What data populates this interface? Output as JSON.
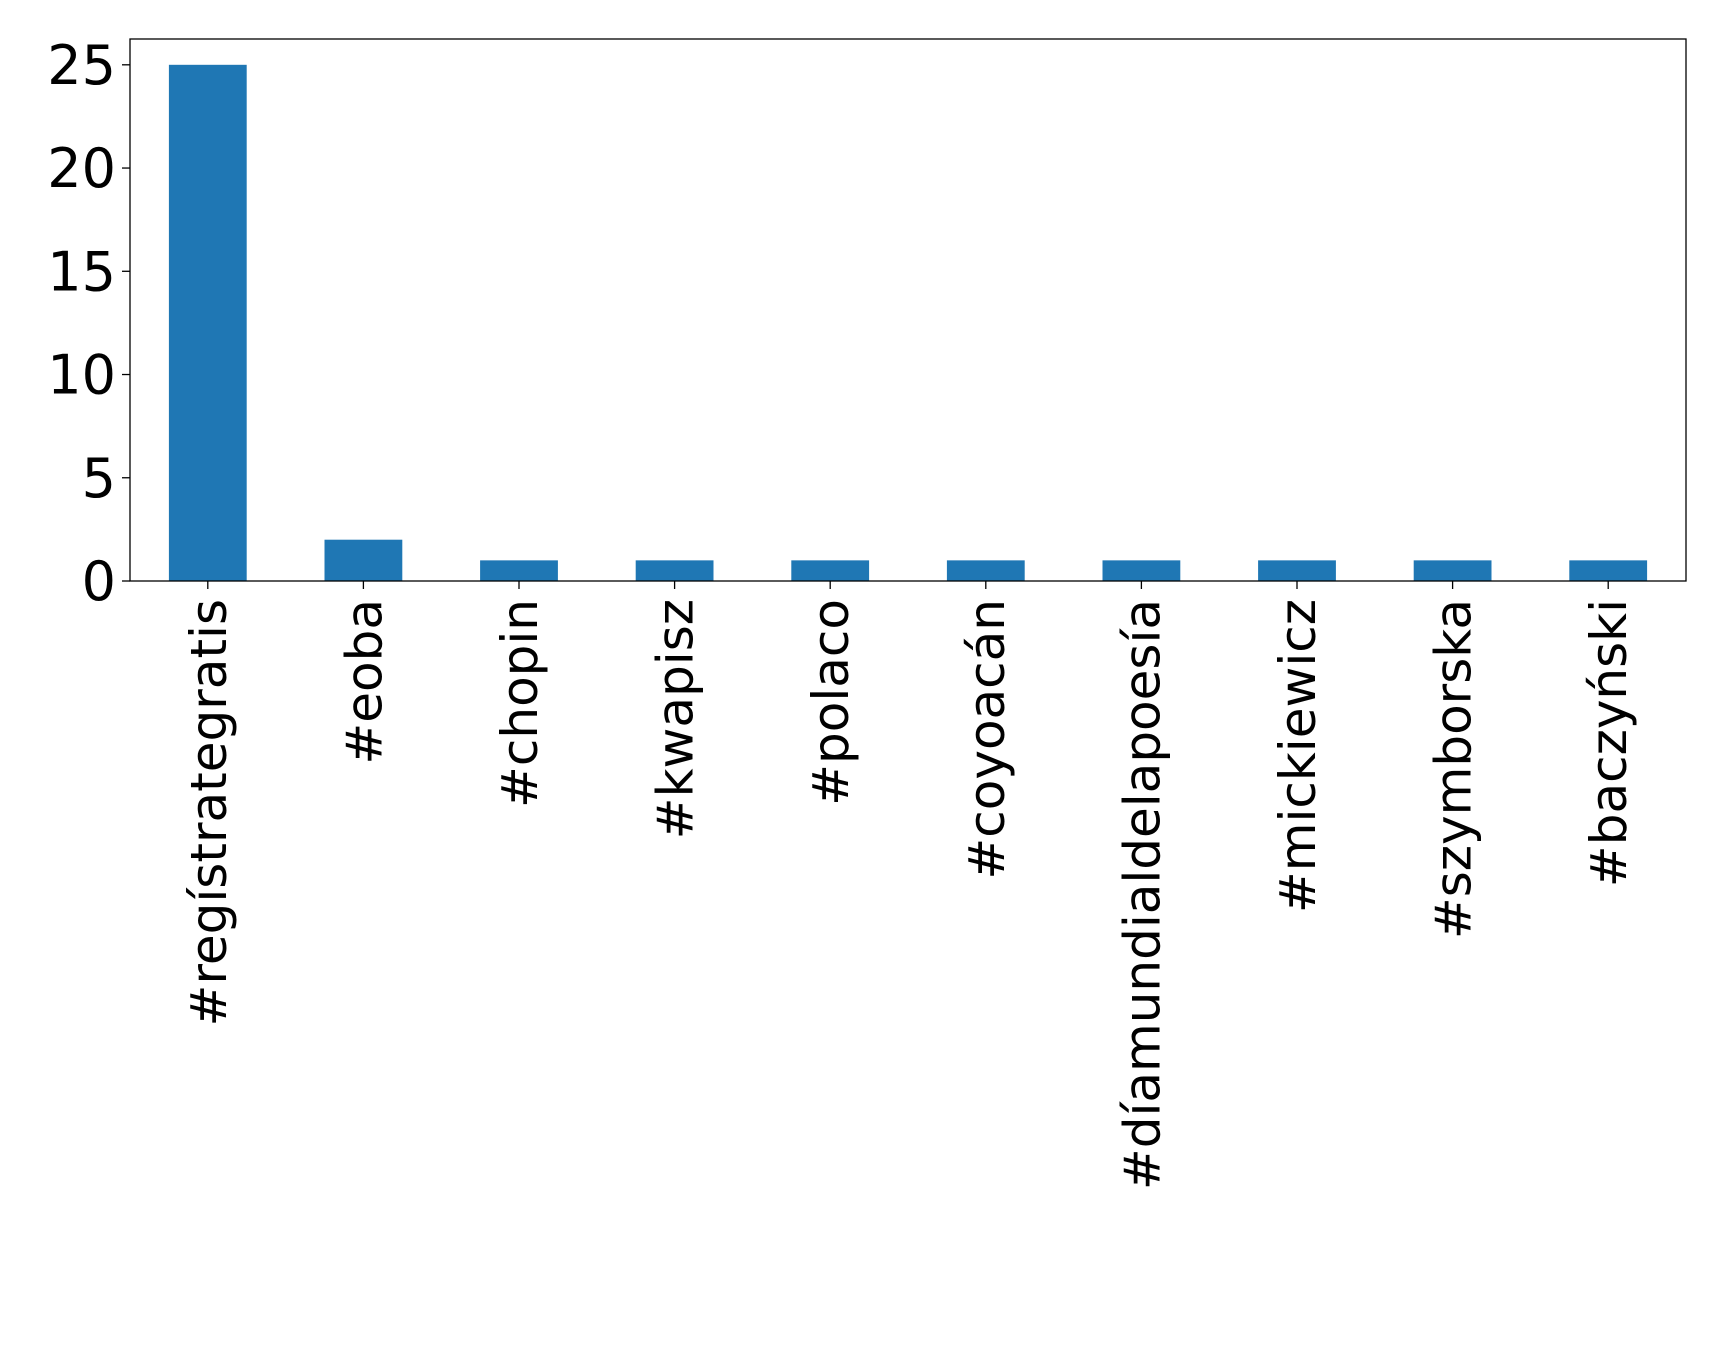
{
  "chart_data": {
    "type": "bar",
    "title": "",
    "xlabel": "",
    "ylabel": "",
    "categories": [
      "#regístrategratis",
      "#eoba",
      "#chopin",
      "#kwapisz",
      "#polaco",
      "#coyoacán",
      "#díamundialdelapoesía",
      "#mickiewicz",
      "#szymborska",
      "#baczyński"
    ],
    "values": [
      25,
      2,
      1,
      1,
      1,
      1,
      1,
      1,
      1,
      1
    ],
    "ylim": [
      0,
      26.25
    ],
    "yticks": [
      0,
      5,
      10,
      15,
      20,
      25
    ],
    "ytick_labels": [
      "0",
      "5",
      "10",
      "15",
      "20",
      "25"
    ],
    "grid": false,
    "legend": "none",
    "bar_color": "#1f77b4"
  }
}
